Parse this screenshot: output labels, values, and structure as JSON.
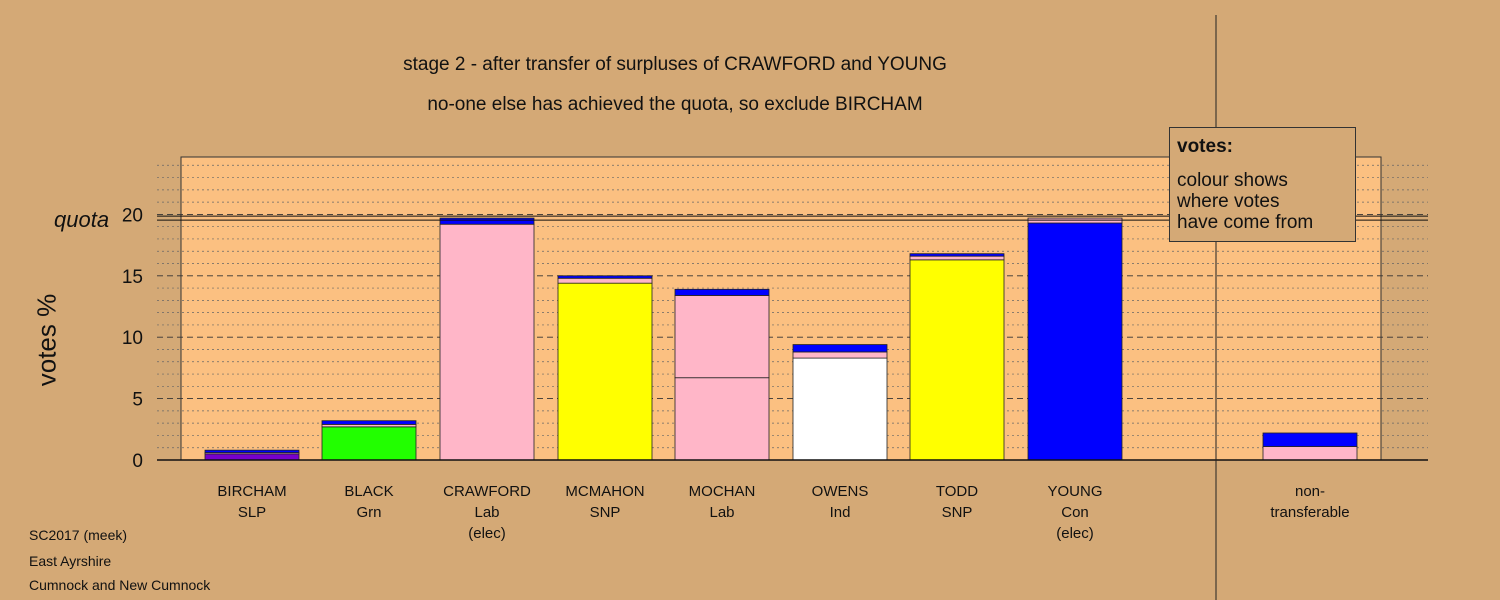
{
  "titles": {
    "line1": "stage 2 - after transfer of surpluses of CRAWFORD and YOUNG",
    "line2": "no-one else has achieved the quota, so exclude BIRCHAM"
  },
  "legend": {
    "title": "votes:",
    "lines": [
      "colour shows",
      "where votes",
      "have come from"
    ]
  },
  "footer": [
    "SC2017 (meek)",
    "East Ayrshire",
    "Cumnock and New Cumnock"
  ],
  "colors": {
    "background": "#d4a976",
    "plot_background": "#fbc081",
    "SLP": "#7700cc",
    "Grn": "#22ff00",
    "Lab": "#ffb6c8",
    "SNP": "#ffff00",
    "Ind": "#ffffff",
    "Con": "#0000ff"
  },
  "chart_data": {
    "type": "bar",
    "stacked": true,
    "ylabel": "votes %",
    "ylim": [
      0,
      25
    ],
    "yticks": [
      0,
      5,
      10,
      15,
      20
    ],
    "quota": 19.7,
    "quota_label": "quota",
    "grid": true,
    "legend_position": "top-right",
    "categories": [
      {
        "name": "BIRCHAM",
        "lines": [
          "BIRCHAM",
          "SLP"
        ],
        "segments": [
          {
            "source": "SLP",
            "value": 0.5
          },
          {
            "source": "Lab",
            "value": 0.1
          },
          {
            "source": "Con",
            "value": 0.2
          }
        ]
      },
      {
        "name": "BLACK",
        "lines": [
          "BLACK",
          "Grn"
        ],
        "segments": [
          {
            "source": "Grn",
            "value": 2.7
          },
          {
            "source": "Lab",
            "value": 0.2
          },
          {
            "source": "Con",
            "value": 0.3
          }
        ]
      },
      {
        "name": "CRAWFORD",
        "lines": [
          "CRAWFORD",
          "Lab",
          "(elec)"
        ],
        "segments": [
          {
            "source": "Lab",
            "value": 19.2
          },
          {
            "source": "Con",
            "value": 0.5
          }
        ]
      },
      {
        "name": "MCMAHON",
        "lines": [
          "MCMAHON",
          "SNP"
        ],
        "segments": [
          {
            "source": "SNP",
            "value": 14.4
          },
          {
            "source": "Lab",
            "value": 0.4
          },
          {
            "source": "Con",
            "value": 0.2
          }
        ]
      },
      {
        "name": "MOCHAN",
        "lines": [
          "MOCHAN",
          "Lab"
        ],
        "segments": [
          {
            "source": "Lab",
            "value": 6.7
          },
          {
            "source": "Lab",
            "value": 6.7
          },
          {
            "source": "Con",
            "value": 0.5
          }
        ]
      },
      {
        "name": "OWENS",
        "lines": [
          "OWENS",
          "Ind"
        ],
        "segments": [
          {
            "source": "Ind",
            "value": 8.3
          },
          {
            "source": "Lab",
            "value": 0.5
          },
          {
            "source": "Con",
            "value": 0.6
          }
        ]
      },
      {
        "name": "TODD",
        "lines": [
          "TODD",
          "SNP"
        ],
        "segments": [
          {
            "source": "SNP",
            "value": 16.3
          },
          {
            "source": "Lab",
            "value": 0.3
          },
          {
            "source": "Con",
            "value": 0.2
          }
        ]
      },
      {
        "name": "YOUNG",
        "lines": [
          "YOUNG",
          "Con",
          "(elec)"
        ],
        "segments": [
          {
            "source": "Con",
            "value": 19.3
          },
          {
            "source": "Lab",
            "value": 0.4
          }
        ]
      },
      {
        "name": "non-transferable",
        "lines": [
          "non-",
          "transferable"
        ],
        "segments": [
          {
            "source": "Lab",
            "value": 1.1
          },
          {
            "source": "Con",
            "value": 1.1
          }
        ]
      }
    ]
  }
}
